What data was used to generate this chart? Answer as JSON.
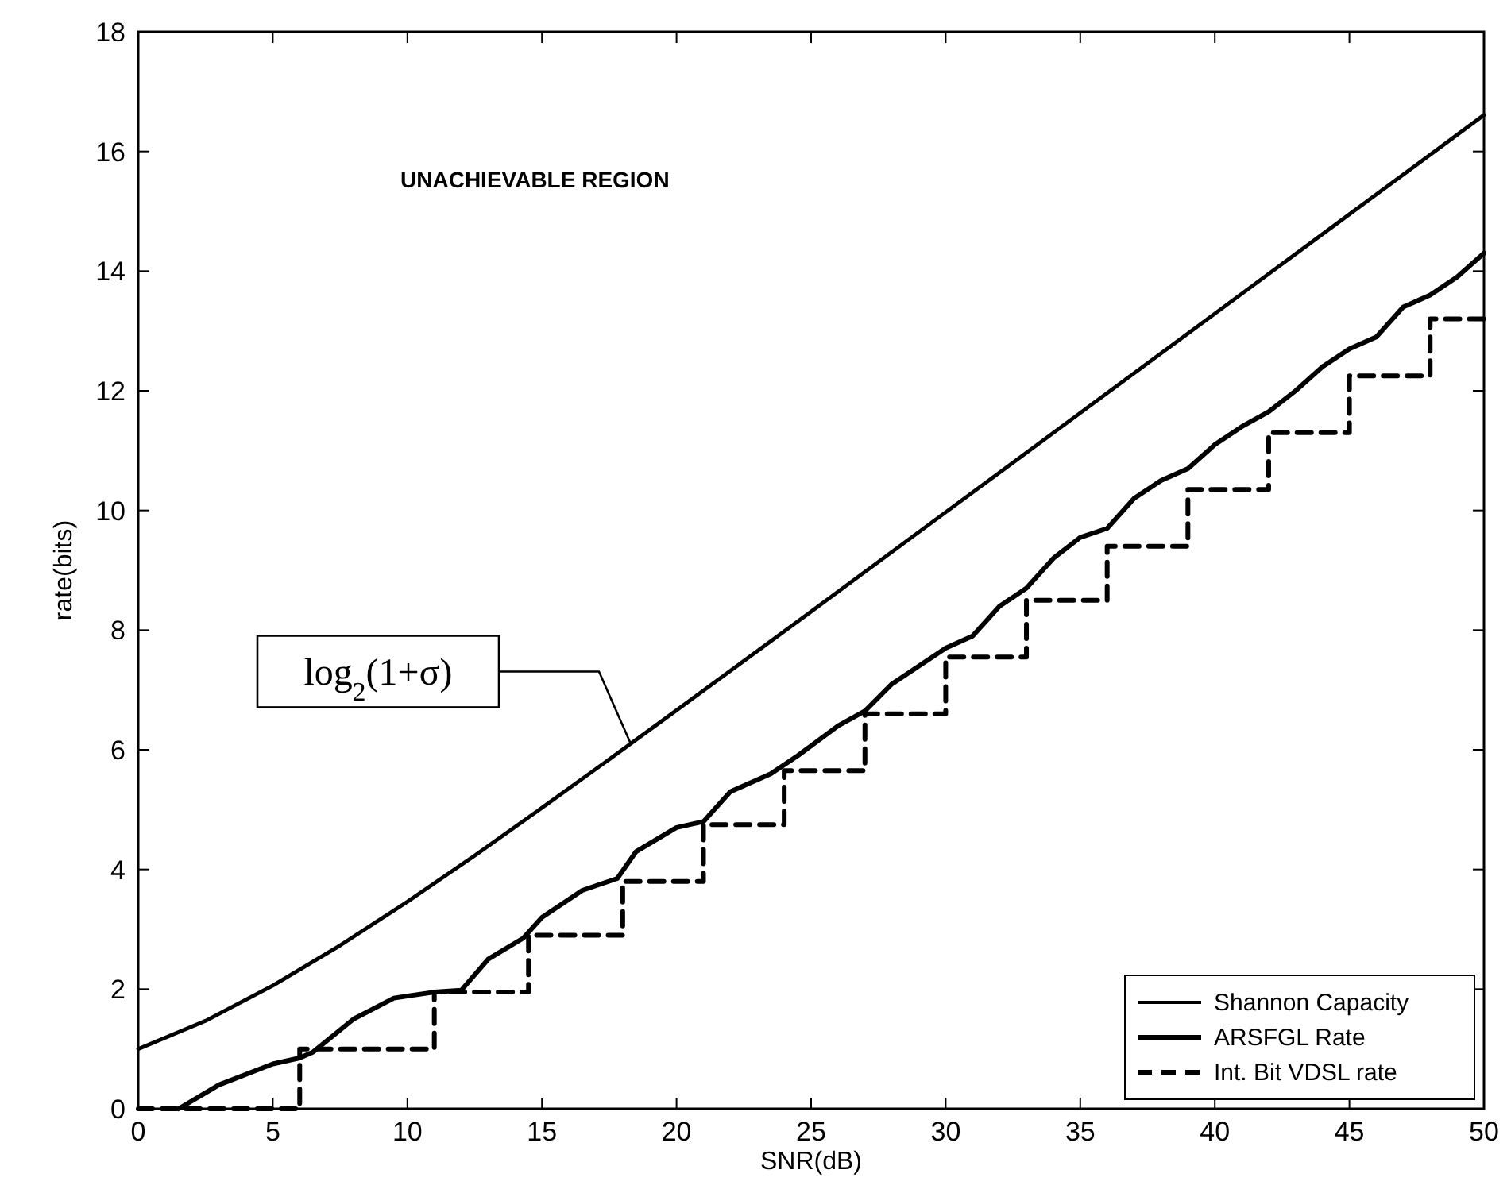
{
  "chart_data": {
    "type": "line",
    "xlabel": "SNR(dB)",
    "ylabel": "rate(bits)",
    "xlim": [
      0,
      50
    ],
    "ylim": [
      0,
      18
    ],
    "xticks": [
      0,
      5,
      10,
      15,
      20,
      25,
      30,
      35,
      40,
      45,
      50
    ],
    "yticks": [
      0,
      2,
      4,
      6,
      8,
      10,
      12,
      14,
      16,
      18
    ],
    "grid": false,
    "legend": "bottom right",
    "marker": "none",
    "annotations": [
      "UNACHIEVABLE REGION",
      {
        "text": "log$_{2}$(1+σ)",
        "x": 18.3,
        "y": 6.1
      }
    ],
    "series": [
      {
        "name": "Shannon Capacity",
        "color": "#000000",
        "line_style": "solid",
        "x": [
          0,
          2.5,
          5,
          7.5,
          10,
          12.5,
          15,
          17.5,
          20,
          25,
          30,
          35,
          40,
          45,
          50
        ],
        "values": [
          1,
          1.47,
          2.06,
          2.73,
          3.46,
          4.23,
          5.03,
          5.84,
          6.66,
          8.31,
          9.97,
          11.63,
          13.29,
          14.95,
          16.61
        ]
      },
      {
        "name": "ARSFGL Rate",
        "color": "#000000",
        "line_style": "solid",
        "x": [
          1.5,
          3,
          5,
          6,
          6.5,
          8,
          9.5,
          11,
          12,
          13,
          14.3,
          15,
          16.5,
          17.8,
          18.5,
          20,
          21,
          22,
          23.5,
          24.5,
          26,
          27,
          28,
          30,
          31,
          32,
          33,
          34,
          35,
          36,
          37,
          38,
          39,
          40,
          41,
          42,
          43,
          44,
          45,
          46,
          47,
          48,
          49,
          50
        ],
        "values": [
          0,
          0.4,
          0.75,
          0.85,
          0.95,
          1.5,
          1.85,
          1.95,
          1.98,
          2.5,
          2.85,
          3.2,
          3.65,
          3.85,
          4.3,
          4.7,
          4.8,
          5.3,
          5.6,
          5.9,
          6.4,
          6.65,
          7.1,
          7.7,
          7.9,
          8.4,
          8.7,
          9.2,
          9.55,
          9.7,
          10.2,
          10.5,
          10.7,
          11.1,
          11.4,
          11.65,
          12,
          12.4,
          12.7,
          12.9,
          13.4,
          13.6,
          13.9,
          14.3
        ]
      },
      {
        "name": "Int. Bit VDSL rate",
        "type": "step",
        "color": "#000000",
        "line_style": "dashed",
        "x": [
          0,
          6,
          11,
          14.5,
          18,
          21,
          24,
          27,
          30,
          33,
          36,
          39,
          42,
          45,
          48,
          50
        ],
        "values": [
          0,
          1,
          1.95,
          2.9,
          3.8,
          4.75,
          5.65,
          6.6,
          7.55,
          8.5,
          9.4,
          10.35,
          11.3,
          12.25,
          13.2,
          13.2
        ]
      }
    ]
  }
}
